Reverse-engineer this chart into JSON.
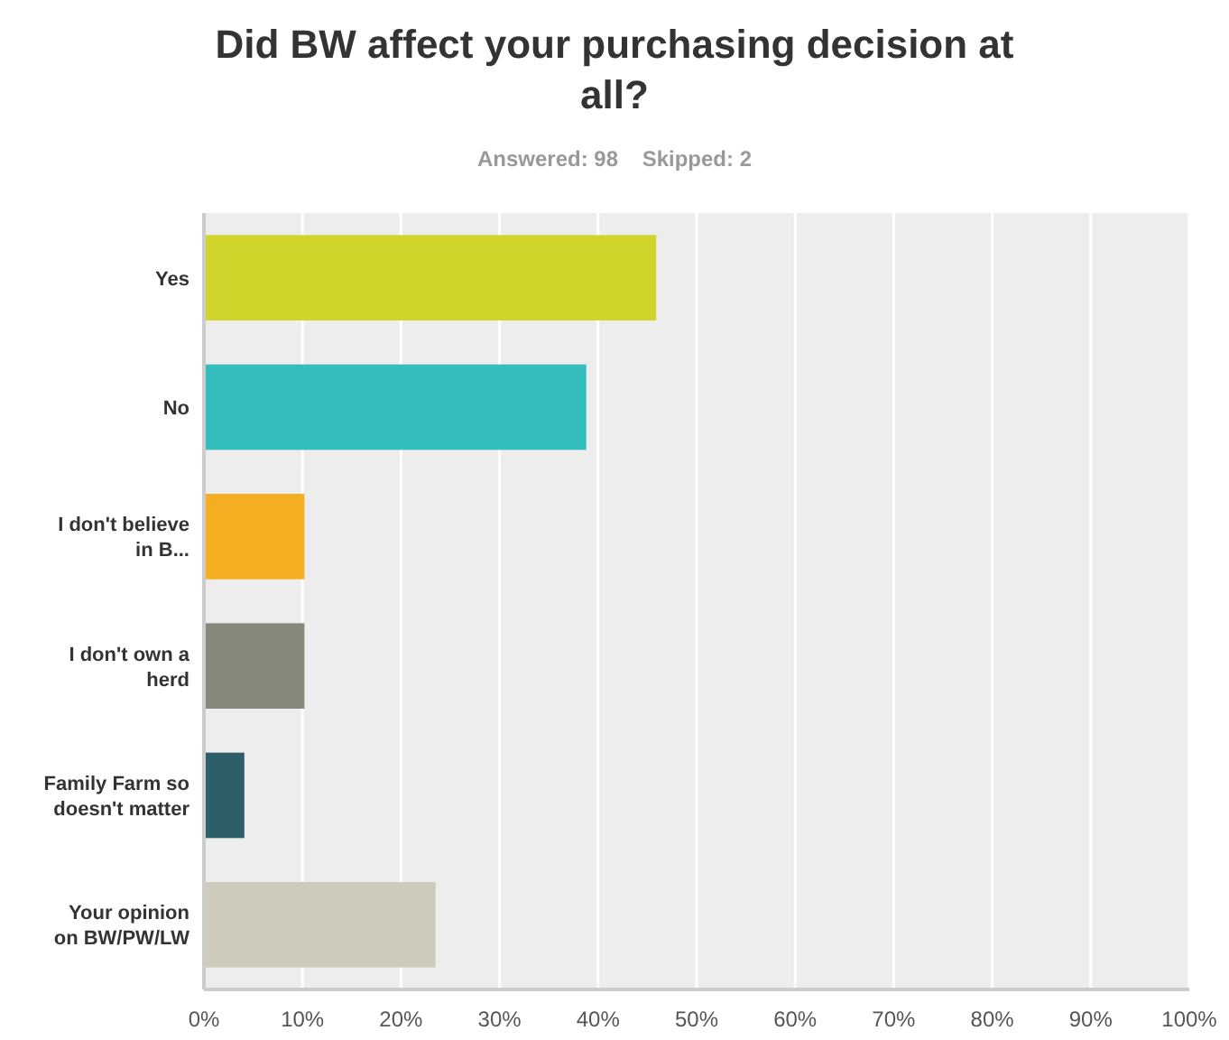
{
  "chart_data": {
    "type": "bar",
    "orientation": "horizontal",
    "title": "Did BW affect your purchasing decision at all?",
    "subtitle": "Answered: 98    Skipped: 2",
    "categories": [
      "Yes",
      "No",
      "I don't believe in B...",
      "I don't own a herd",
      "Family Farm so doesn't matter",
      "Your opinion on BW/PW/LW"
    ],
    "values": [
      45.9,
      38.8,
      10.2,
      10.2,
      4.1,
      23.5
    ],
    "colors": [
      "#cfd52a",
      "#33bdbd",
      "#f5ae22",
      "#87877a",
      "#2d5f69",
      "#cecbbd"
    ],
    "xlim": [
      0,
      100
    ],
    "xticks": [
      {
        "value": 0,
        "label": "0%"
      },
      {
        "value": 10,
        "label": "10%"
      },
      {
        "value": 20,
        "label": "20%"
      },
      {
        "value": 30,
        "label": "30%"
      },
      {
        "value": 40,
        "label": "40%"
      },
      {
        "value": 50,
        "label": "50%"
      },
      {
        "value": 60,
        "label": "60%"
      },
      {
        "value": 70,
        "label": "70%"
      },
      {
        "value": 80,
        "label": "80%"
      },
      {
        "value": 90,
        "label": "90%"
      },
      {
        "value": 100,
        "label": "100%"
      }
    ],
    "grid": "x"
  }
}
